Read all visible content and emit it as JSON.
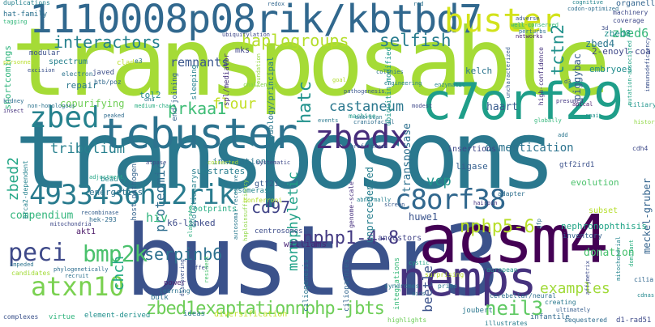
{
  "cloud": {
    "words": [
      {
        "text": "transposable",
        "color": "#a5db36"
      },
      {
        "text": "transposons",
        "color": "#2a788e"
      },
      {
        "text": "buster3",
        "color": "#3b528b"
      },
      {
        "text": "1110008p08rik/kbtbd7",
        "color": "#31688e"
      },
      {
        "text": "acsm4",
        "color": "#440154"
      },
      {
        "text": "nemps",
        "color": "#46327e"
      },
      {
        "text": "c7orf29",
        "color": "#1f9e89"
      },
      {
        "text": "tcbuster",
        "color": "#2c728e"
      },
      {
        "text": "buster",
        "color": "#d2e21b"
      },
      {
        "text": "zbedx",
        "color": "#472d7b"
      },
      {
        "text": "zbed",
        "color": "#26828e"
      },
      {
        "text": "4933436h12rik",
        "color": "#297b8e"
      },
      {
        "text": "c8orf38",
        "color": "#31688e"
      },
      {
        "text": "zbed1exaptationnphp-jbts",
        "color": "#6ece58"
      },
      {
        "text": "interactors",
        "color": "#26818e"
      },
      {
        "text": "haplogroups",
        "color": "#b5de2b"
      },
      {
        "text": "selfish",
        "color": "#287c8e"
      },
      {
        "text": "tctn2",
        "color": "#21918c"
      },
      {
        "text": "peci",
        "color": "#3e4989"
      },
      {
        "text": "bmp2k",
        "color": "#4ac16d"
      },
      {
        "text": "atxn10",
        "color": "#7ad151"
      },
      {
        "text": "nphp5-6",
        "color": "#b8de29"
      },
      {
        "text": "nphp1-4-8",
        "color": "#443a83"
      },
      {
        "text": "serpinb6",
        "color": "#2d718e"
      },
      {
        "text": "neil3",
        "color": "#5ec962"
      },
      {
        "text": "examples",
        "color": "#a0da39"
      },
      {
        "text": "castaneum",
        "color": "#2a778e"
      },
      {
        "text": "prkaa1",
        "color": "#3dbc74"
      },
      {
        "text": "flour",
        "color": "#c2df23"
      },
      {
        "text": "hatc",
        "color": "#20928c"
      },
      {
        "text": "cd97",
        "color": "#414487"
      },
      {
        "text": "monophyletic",
        "color": "#1fa187"
      },
      {
        "text": "proteomic",
        "color": "#2e6d8e"
      },
      {
        "text": "zbed2",
        "color": "#21a685"
      },
      {
        "text": "chch",
        "color": "#22a884"
      },
      {
        "text": "tribolium",
        "color": "#27808e"
      },
      {
        "text": "beetle",
        "color": "#3b528b"
      },
      {
        "text": "remnants",
        "color": "#39568c"
      },
      {
        "text": "zbed6",
        "color": "#35b779"
      },
      {
        "text": "piggybac",
        "color": "#365c8d"
      },
      {
        "text": "transposase",
        "color": "#2d708e"
      },
      {
        "text": "domestication",
        "color": "#2c738e"
      },
      {
        "text": "vcp",
        "color": "#1f958b"
      },
      {
        "text": "hiv",
        "color": "#2fb47c"
      },
      {
        "text": "compendium",
        "color": "#31b57b"
      },
      {
        "text": "haart",
        "color": "#375a8c"
      },
      {
        "text": "huwe1",
        "color": "#3a548c"
      },
      {
        "text": "donation",
        "color": "#48c16e"
      },
      {
        "text": "gtf2i",
        "color": "#38598c"
      },
      {
        "text": "zbed4",
        "color": "#2a768e"
      },
      {
        "text": "copurifying",
        "color": "#70cf57"
      },
      {
        "text": "tol2",
        "color": "#23898e"
      },
      {
        "text": "kelch",
        "color": "#2b748e"
      },
      {
        "text": "ligase",
        "color": "#355f8d"
      },
      {
        "text": "insertions",
        "color": "#3f4788"
      },
      {
        "text": "meckel-gruber",
        "color": "#33638d"
      },
      {
        "text": "nephronophthisis",
        "color": "#20a486"
      },
      {
        "text": "energetics",
        "color": "#2c718e"
      },
      {
        "text": "substrates",
        "color": "#287d8e"
      },
      {
        "text": "innovation",
        "color": "#2b758e"
      },
      {
        "text": "unprecedented",
        "color": "#277f8e"
      },
      {
        "text": "evolution",
        "color": "#4cc26c"
      },
      {
        "text": "embryoes",
        "color": "#228d8d"
      },
      {
        "text": "repair",
        "color": "#2a788e"
      },
      {
        "text": "mks",
        "color": "#404588"
      },
      {
        "text": "k6-linked",
        "color": "#3e4c8a"
      },
      {
        "text": "centrosomes",
        "color": "#3d4d8a"
      },
      {
        "text": "williams",
        "color": "#482576"
      },
      {
        "text": "ancestors",
        "color": "#404387"
      },
      {
        "text": "akt1",
        "color": "#471365"
      },
      {
        "text": "footprints",
        "color": "#25ac82"
      },
      {
        "text": "elaborate",
        "color": "#29af7f"
      },
      {
        "text": "medium-chain",
        "color": "#27ad81"
      },
      {
        "text": "adjustment",
        "color": "#21a585"
      },
      {
        "text": "beauty",
        "color": "#228b8d"
      },
      {
        "text": "hek-293",
        "color": "#2f6c8e"
      },
      {
        "text": "sleeping",
        "color": "#26828e"
      },
      {
        "text": "end-joining",
        "color": "#33638d"
      },
      {
        "text": "ubiquitin-modified",
        "color": "#1f988b"
      },
      {
        "text": "genome-scale",
        "color": "#46307e"
      },
      {
        "text": "mitochondrial",
        "color": "#25848e"
      },
      {
        "text": "adapter",
        "color": "#2e6f8e"
      },
      {
        "text": "subset",
        "color": "#b5de2b"
      },
      {
        "text": "inventory",
        "color": "#34618d"
      },
      {
        "text": "cilia",
        "color": "#31678e"
      },
      {
        "text": "cdh4",
        "color": "#3e4a89"
      },
      {
        "text": "gtf2ird1",
        "color": "#3b518b"
      },
      {
        "text": "machine",
        "color": "#1f9a8a"
      },
      {
        "text": "craniofacial",
        "color": "#2e6e8e"
      },
      {
        "text": "hairpin",
        "color": "#46337f"
      },
      {
        "text": "screen",
        "color": "#38598c"
      },
      {
        "text": "preferences",
        "color": "#375b8d"
      },
      {
        "text": "history",
        "color": "#8fd744"
      },
      {
        "text": "ciliary",
        "color": "#1f948c"
      },
      {
        "text": "rnai",
        "color": "#21918c"
      },
      {
        "text": "presumed",
        "color": "#453882"
      },
      {
        "text": "globally",
        "color": "#32b67a"
      },
      {
        "text": "apical",
        "color": "#48186a"
      },
      {
        "text": "add",
        "color": "#2a768e"
      },
      {
        "text": "modest",
        "color": "#3f4889"
      },
      {
        "text": "american",
        "color": "#297a8e"
      },
      {
        "text": "events",
        "color": "#29798e"
      },
      {
        "text": "enzymatic",
        "color": "#24878e"
      },
      {
        "text": "engineering",
        "color": "#26818e"
      },
      {
        "text": "colonies",
        "color": "#2c738e"
      },
      {
        "text": "pathogenesis",
        "color": "#39558c"
      },
      {
        "text": "goal",
        "color": "#b0dd2f"
      },
      {
        "text": "challenges",
        "color": "#81d34d"
      },
      {
        "text": "methodology/principal",
        "color": "#2a788e"
      },
      {
        "text": "spl/mediator",
        "color": "#46307e"
      },
      {
        "text": "ubiquitylation",
        "color": "#3f4788"
      },
      {
        "text": "foundation",
        "color": "#95d840"
      },
      {
        "text": "redox",
        "color": "#31668e"
      },
      {
        "text": "red",
        "color": "#2c728e"
      },
      {
        "text": "uncharacterized",
        "color": "#365d8d"
      },
      {
        "text": "high-confidence",
        "color": "#46337f"
      },
      {
        "text": "adverse",
        "color": "#3a548c"
      },
      {
        "text": "well-conserved",
        "color": "#35b779"
      },
      {
        "text": "perturbs",
        "color": "#2d708e"
      },
      {
        "text": "networks",
        "color": "#481d6f"
      },
      {
        "text": "cognitive",
        "color": "#25858e"
      },
      {
        "text": "codon-optimized",
        "color": "#2e6e8e"
      },
      {
        "text": "organelle",
        "color": "#32648e"
      },
      {
        "text": "machinery",
        "color": "#3e4989"
      },
      {
        "text": "coverage",
        "color": "#3f4889"
      },
      {
        "text": "zbed8",
        "color": "#21918c"
      },
      {
        "text": "2-enoyl-coa",
        "color": "#3f4788"
      },
      {
        "text": "3d",
        "color": "#3d4e8a"
      },
      {
        "text": "d3",
        "color": "#3b528b"
      },
      {
        "text": "mutation-associated",
        "color": "#20a386"
      },
      {
        "text": "immunodeficiency",
        "color": "#3b518b"
      },
      {
        "text": "duplications",
        "color": "#26828e"
      },
      {
        "text": "hat-family",
        "color": "#2c718e"
      },
      {
        "text": "tagging",
        "color": "#32b67a"
      },
      {
        "text": "shortcomings",
        "color": "#2fb47c"
      },
      {
        "text": "modular",
        "color": "#3c508b"
      },
      {
        "text": "excision",
        "color": "#3b518b"
      },
      {
        "text": "spectrum",
        "color": "#26818e"
      },
      {
        "text": "clades",
        "color": "#bade28"
      },
      {
        "text": "electron",
        "color": "#2b748e"
      },
      {
        "text": "javed",
        "color": "#3d4e8a"
      },
      {
        "text": "e3",
        "color": "#2a768e"
      },
      {
        "text": "btb/poz",
        "color": "#31688e"
      },
      {
        "text": "personnel",
        "color": "#b8de29"
      },
      {
        "text": "kidney",
        "color": "#2e6d8e"
      },
      {
        "text": "non-homologous",
        "color": "#2c738e"
      },
      {
        "text": "insect",
        "color": "#46327e"
      },
      {
        "text": "peaked",
        "color": "#2f6b8e"
      },
      {
        "text": "dna",
        "color": "#2a778e"
      },
      {
        "text": "atpase",
        "color": "#3d4d8a"
      },
      {
        "text": "connected",
        "color": "#a8db34"
      },
      {
        "text": "systematic",
        "color": "#3e4989"
      },
      {
        "text": "brca2-dependent",
        "color": "#25838e"
      },
      {
        "text": "host-pathogen",
        "color": "#33638d"
      },
      {
        "text": "evolutionary",
        "color": "#26828e"
      },
      {
        "text": "autosomal-recessive",
        "color": "#29798e"
      },
      {
        "text": "haploinsufficiency",
        "color": "#8ed645"
      },
      {
        "text": "isomerase",
        "color": "#25858e"
      },
      {
        "text": "abnormally",
        "color": "#26818e"
      },
      {
        "text": "bonferroni",
        "color": "#b5de2b"
      },
      {
        "text": "mitochondria",
        "color": "#3e4989"
      },
      {
        "text": "recombinase",
        "color": "#355e8d"
      },
      {
        "text": "impeded",
        "color": "#2c738e"
      },
      {
        "text": "candidates",
        "color": "#a2da37"
      },
      {
        "text": "phylogenetically",
        "color": "#2e6d8e"
      },
      {
        "text": "recruit",
        "color": "#2d718e"
      },
      {
        "text": "complexes",
        "color": "#3b528b"
      },
      {
        "text": "virtue",
        "color": "#2fb47c"
      },
      {
        "text": "element-derived",
        "color": "#21908d"
      },
      {
        "text": "bulk",
        "color": "#2c718e"
      },
      {
        "text": "power",
        "color": "#481f70"
      },
      {
        "text": "learning",
        "color": "#2c738e"
      },
      {
        "text": "ideas",
        "color": "#29798e"
      },
      {
        "text": "diversification",
        "color": "#bddf26"
      },
      {
        "text": "offer",
        "color": "#3d4d8a"
      },
      {
        "text": "discovering",
        "color": "#3b528b"
      },
      {
        "text": "resident",
        "color": "#48c16e"
      },
      {
        "text": "ciliogenesis",
        "color": "#2b748e"
      },
      {
        "text": "ciliopathies",
        "color": "#32658e"
      },
      {
        "text": "integrations",
        "color": "#37b878"
      },
      {
        "text": "cystic",
        "color": "#20a386"
      },
      {
        "text": "surprising",
        "color": "#b8de29"
      },
      {
        "text": "syndromes",
        "color": "#2a778e"
      },
      {
        "text": "aids",
        "color": "#2c738e"
      },
      {
        "text": "highlights",
        "color": "#6ece58"
      },
      {
        "text": "prime",
        "color": "#2b758e"
      },
      {
        "text": "european",
        "color": "#20928c"
      },
      {
        "text": "cerebellar/neural",
        "color": "#2e6f8e"
      },
      {
        "text": "creating",
        "color": "#2a788e"
      },
      {
        "text": "ultimately",
        "color": "#365d8d"
      },
      {
        "text": "joubert",
        "color": "#2a778e"
      },
      {
        "text": "illustrates",
        "color": "#287d8e"
      },
      {
        "text": "infantile",
        "color": "#30698e"
      },
      {
        "text": "sequestered",
        "color": "#2f6c8e"
      },
      {
        "text": "d1-rad51",
        "color": "#3e4a89"
      },
      {
        "text": "affymetrix",
        "color": "#3e4c8a"
      },
      {
        "text": "gfp",
        "color": "#2c728e"
      },
      {
        "text": "cdnas",
        "color": "#23888e"
      },
      {
        "text": "dominant",
        "color": "#29af7f"
      }
    ]
  }
}
